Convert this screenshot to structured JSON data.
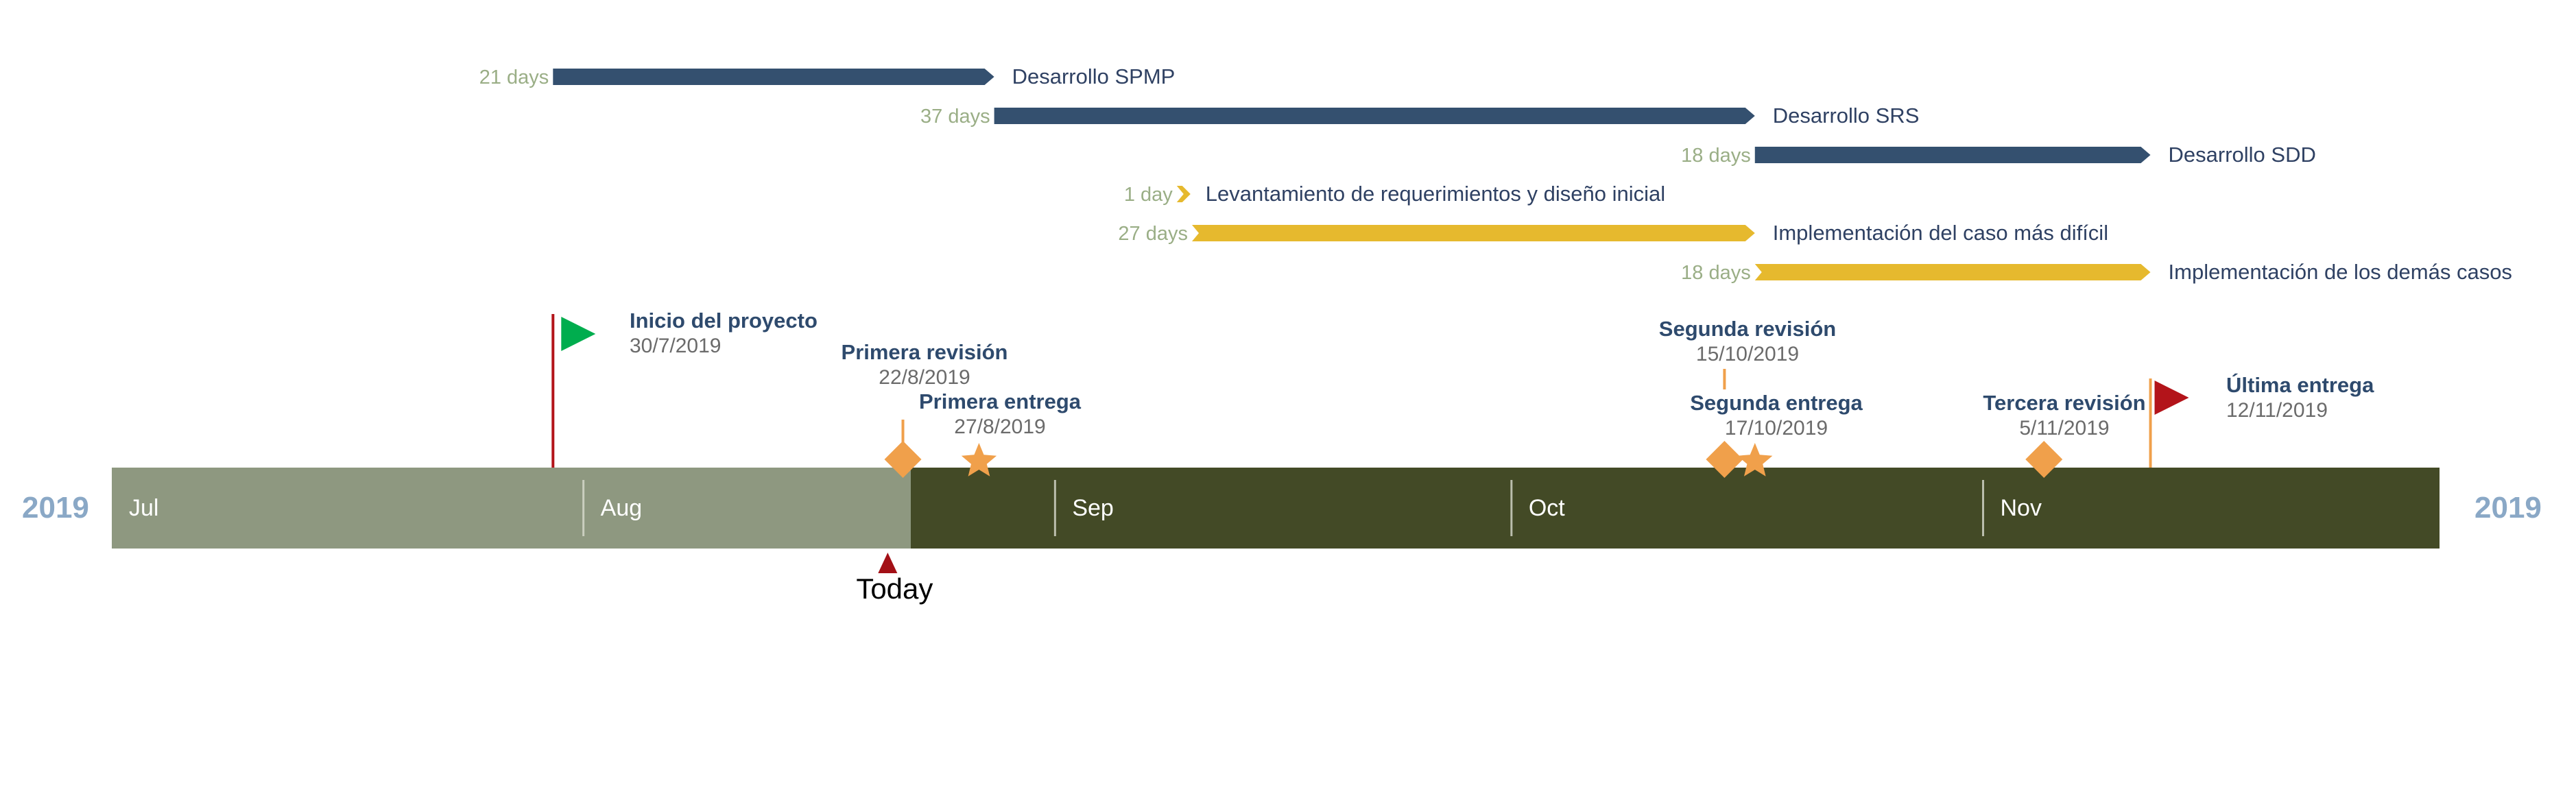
{
  "timeline": {
    "year_left": "2019",
    "year_right": "2019",
    "today_label": "Today",
    "months": [
      {
        "label": "Jul",
        "start": "2019-07-01"
      },
      {
        "label": "Aug",
        "start": "2019-08-01"
      },
      {
        "label": "Sep",
        "start": "2019-09-01"
      },
      {
        "label": "Oct",
        "start": "2019-10-01"
      },
      {
        "label": "Nov",
        "start": "2019-11-01"
      }
    ],
    "range": [
      "2019-07-01",
      "2019-12-01"
    ],
    "today": "2019-08-21",
    "colors": {
      "elapsed": "#8e9880",
      "remaining": "#434a26",
      "navy_task": "#34506f",
      "gold_task": "#e6b92e",
      "days_text": "#9aae86",
      "year_text": "#8aa8c6",
      "milestone": "#f0a04b",
      "start_flag": "#00ad4e",
      "end_flag": "#b3141a",
      "today_marker": "#a31016"
    }
  },
  "tasks": [
    {
      "days": "21 days",
      "name": "Desarrollo SPMP",
      "start": "2019-07-30",
      "end": "2019-08-28",
      "color": "navy"
    },
    {
      "days": "37 days",
      "name": "Desarrollo SRS",
      "start": "2019-08-28",
      "end": "2019-10-17",
      "color": "navy"
    },
    {
      "days": "18 days",
      "name": "Desarrollo SDD",
      "start": "2019-10-17",
      "end": "2019-11-12",
      "color": "navy"
    },
    {
      "days": "1 day",
      "name": "Levantamiento de requerimientos y diseño inicial",
      "start": "2019-09-09",
      "end": "2019-09-10",
      "color": "gold"
    },
    {
      "days": "27 days",
      "name": "Implementación del caso más difícil",
      "start": "2019-09-10",
      "end": "2019-10-17",
      "color": "gold"
    },
    {
      "days": "18 days",
      "name": "Implementación de los demás casos",
      "start": "2019-10-17",
      "end": "2019-11-12",
      "color": "gold"
    }
  ],
  "milestones": [
    {
      "title": "Inicio del proyecto",
      "date": "30/7/2019",
      "iso": "2019-07-30",
      "shape": "flag-start"
    },
    {
      "title": "Primera revisión",
      "date": "22/8/2019",
      "iso": "2019-08-22",
      "shape": "diamond"
    },
    {
      "title": "Primera entrega",
      "date": "27/8/2019",
      "iso": "2019-08-27",
      "shape": "star"
    },
    {
      "title": "Segunda revisión",
      "date": "15/10/2019",
      "iso": "2019-10-15",
      "shape": "diamond"
    },
    {
      "title": "Segunda entrega",
      "date": "17/10/2019",
      "iso": "2019-10-17",
      "shape": "star"
    },
    {
      "title": "Tercera revisión",
      "date": "5/11/2019",
      "iso": "2019-11-05",
      "shape": "diamond"
    },
    {
      "title": "Última entrega",
      "date": "12/11/2019",
      "iso": "2019-11-12",
      "shape": "flag-end"
    }
  ]
}
